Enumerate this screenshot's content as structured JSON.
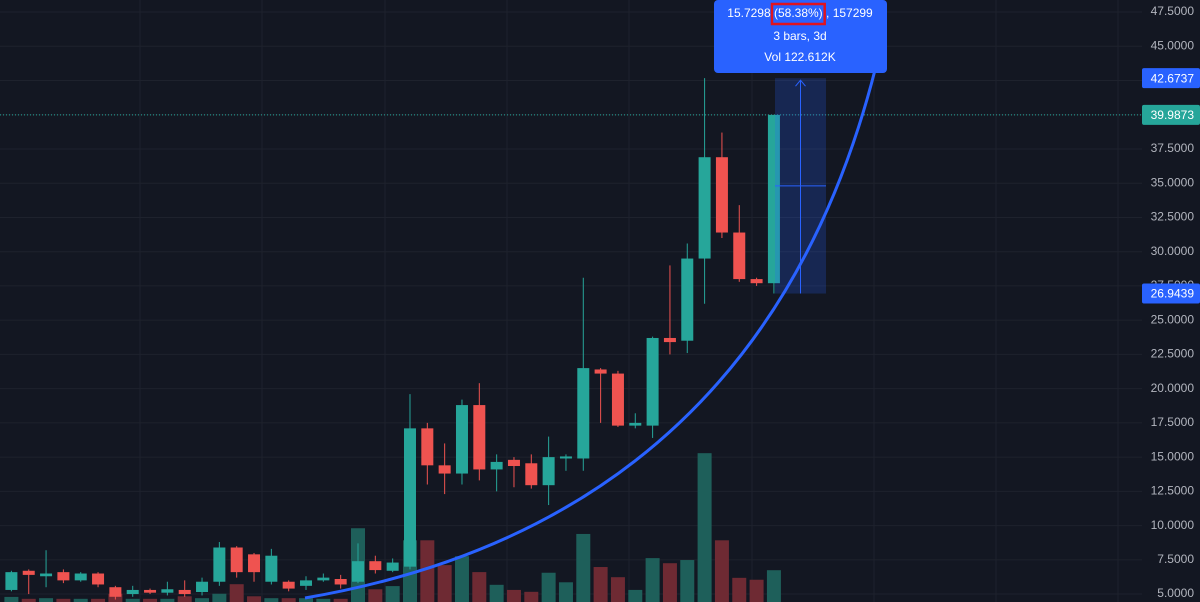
{
  "chart_data": {
    "type": "candlestick",
    "open": [
      5.3,
      6.7,
      6.3,
      6.6,
      6.0,
      6.5,
      5.5,
      5.0,
      5.3,
      5.1,
      5.3,
      5.15,
      5.9,
      8.4,
      7.9,
      5.9,
      5.9,
      5.6,
      6.0,
      6.1,
      5.9,
      7.4,
      6.7,
      7.0,
      17.1,
      14.4,
      13.8,
      18.8,
      14.1,
      14.8,
      14.55,
      12.95,
      14.9,
      14.9,
      21.4,
      21.1,
      17.3,
      17.3,
      23.7,
      23.5,
      29.5,
      36.9,
      31.4,
      28.0,
      27.7
    ],
    "high": [
      6.7,
      6.8,
      8.2,
      6.8,
      6.6,
      6.6,
      5.6,
      5.6,
      5.4,
      5.9,
      6.0,
      6.2,
      8.8,
      8.5,
      8.0,
      8.3,
      6.0,
      6.3,
      6.5,
      6.4,
      8.7,
      7.8,
      7.6,
      19.6,
      17.5,
      16.0,
      19.2,
      20.4,
      15.2,
      15.0,
      15.2,
      16.5,
      15.2,
      28.1,
      21.5,
      21.3,
      18.2,
      23.8,
      29.0,
      30.6,
      42.6737,
      38.7,
      33.4,
      28.1,
      39.9873
    ],
    "low": [
      5.2,
      5.0,
      5.5,
      5.8,
      5.9,
      5.5,
      4.6,
      4.8,
      5.0,
      4.9,
      4.8,
      4.9,
      5.6,
      6.2,
      5.9,
      5.7,
      5.2,
      5.3,
      5.9,
      5.4,
      5.8,
      6.5,
      6.6,
      6.8,
      13.0,
      12.3,
      13.0,
      13.3,
      12.5,
      12.8,
      12.7,
      11.5,
      14.0,
      14.0,
      17.5,
      17.2,
      17.1,
      16.4,
      22.5,
      22.6,
      26.2,
      31.0,
      27.8,
      27.5,
      26.9439
    ],
    "close": [
      6.6,
      6.4,
      6.5,
      6.0,
      6.5,
      5.7,
      4.8,
      5.3,
      5.1,
      5.35,
      5.0,
      5.9,
      8.4,
      6.6,
      6.6,
      7.8,
      5.4,
      6.0,
      6.2,
      5.7,
      7.4,
      6.75,
      7.3,
      17.1,
      14.4,
      13.8,
      18.8,
      14.1,
      14.65,
      14.35,
      12.95,
      15.0,
      15.05,
      21.5,
      21.1,
      17.3,
      17.5,
      23.7,
      23.4,
      29.5,
      36.9,
      31.4,
      28.0,
      27.7,
      39.9873
    ],
    "volume": [
      8,
      5,
      6,
      5,
      5,
      5,
      13,
      5,
      5,
      5,
      9,
      6,
      13,
      28,
      9,
      6,
      6,
      6,
      5,
      5,
      116,
      20,
      25,
      97,
      97,
      58,
      72,
      47,
      27,
      19,
      16,
      46,
      31,
      107,
      55,
      39,
      19,
      69,
      61,
      66,
      234,
      97,
      38,
      35,
      50
    ],
    "volume_lim": [
      0,
      250
    ],
    "up_color": "#26a69a",
    "down_color": "#ef5350",
    "up_volume_color": "#1e5f5a",
    "down_volume_color": "#6e2a33",
    "ylim": [
      4.42,
      48.38
    ],
    "yticks": [
      {
        "value": 5,
        "label": "5.0000"
      },
      {
        "value": 7.5,
        "label": "7.5000"
      },
      {
        "value": 10,
        "label": "10.0000"
      },
      {
        "value": 12.5,
        "label": "12.5000"
      },
      {
        "value": 15,
        "label": "15.0000"
      },
      {
        "value": 17.5,
        "label": "17.5000"
      },
      {
        "value": 20,
        "label": "20.0000"
      },
      {
        "value": 22.5,
        "label": "22.5000"
      },
      {
        "value": 25,
        "label": "25.0000"
      },
      {
        "value": 27.5,
        "label": "27.5000"
      },
      {
        "value": 30,
        "label": "30.0000"
      },
      {
        "value": 32.5,
        "label": "32.5000"
      },
      {
        "value": 35,
        "label": "35.0000"
      },
      {
        "value": 37.5,
        "label": "37.5000"
      },
      {
        "value": 40,
        "label": "40.0000"
      },
      {
        "value": 42.5,
        "label": "42.5000"
      },
      {
        "value": 45,
        "label": "45.0000"
      },
      {
        "value": 47.5,
        "label": "47.5000"
      }
    ],
    "grid": true,
    "markers": [
      42.6737,
      39.9873,
      26.9439
    ],
    "marker_colors": [
      "#2962ff",
      "#26a69a",
      "#2962ff"
    ],
    "measure": {
      "line1": [
        "15.7298 ",
        "(58.38%)",
        " , 157299"
      ],
      "line2": "3 bars, 3d",
      "line3": "Vol 122.612K"
    }
  }
}
